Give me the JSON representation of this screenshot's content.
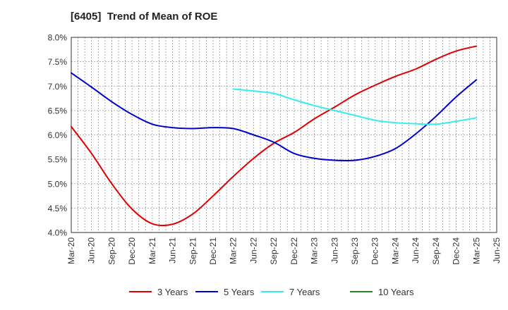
{
  "chart_data": {
    "type": "line",
    "title": "[6405]  Trend of Mean of ROE",
    "xlabel": "",
    "ylabel": "",
    "ylim": [
      4.0,
      8.0
    ],
    "y_ticks": [
      "4.0%",
      "4.5%",
      "5.0%",
      "5.5%",
      "6.0%",
      "6.5%",
      "7.0%",
      "7.5%",
      "8.0%"
    ],
    "y_tick_values": [
      4.0,
      4.5,
      5.0,
      5.5,
      6.0,
      6.5,
      7.0,
      7.5,
      8.0
    ],
    "x_ticks": [
      "Mar-20",
      "Jun-20",
      "Sep-20",
      "Dec-20",
      "Mar-21",
      "Jun-21",
      "Sep-21",
      "Dec-21",
      "Mar-22",
      "Jun-22",
      "Sep-22",
      "Dec-22",
      "Mar-23",
      "Jun-23",
      "Sep-23",
      "Dec-23",
      "Mar-24",
      "Jun-24",
      "Sep-24",
      "Dec-24",
      "Mar-25",
      "Jun-25"
    ],
    "grid": true,
    "legend_position": "bottom",
    "series": [
      {
        "name": "3 Years",
        "color": "#e00000",
        "start_index": 0,
        "values": [
          6.17,
          5.62,
          5.0,
          4.48,
          4.18,
          4.17,
          4.38,
          4.75,
          5.15,
          5.52,
          5.83,
          6.05,
          6.33,
          6.57,
          6.82,
          7.02,
          7.2,
          7.35,
          7.55,
          7.72,
          7.82
        ]
      },
      {
        "name": "5 Years",
        "color": "#0000cc",
        "start_index": 0,
        "values": [
          7.27,
          6.98,
          6.68,
          6.42,
          6.22,
          6.15,
          6.13,
          6.15,
          6.13,
          6.0,
          5.85,
          5.62,
          5.52,
          5.48,
          5.48,
          5.56,
          5.72,
          6.02,
          6.38,
          6.78,
          7.13
        ]
      },
      {
        "name": "7 Years",
        "color": "#33eeee",
        "start_index": 8,
        "values": [
          6.94,
          6.9,
          6.85,
          6.72,
          6.6,
          6.5,
          6.4,
          6.3,
          6.25,
          6.23,
          6.22,
          6.28,
          6.35
        ]
      },
      {
        "name": "10 Years",
        "color": "#228b22",
        "start_index": 0,
        "values": []
      }
    ]
  }
}
